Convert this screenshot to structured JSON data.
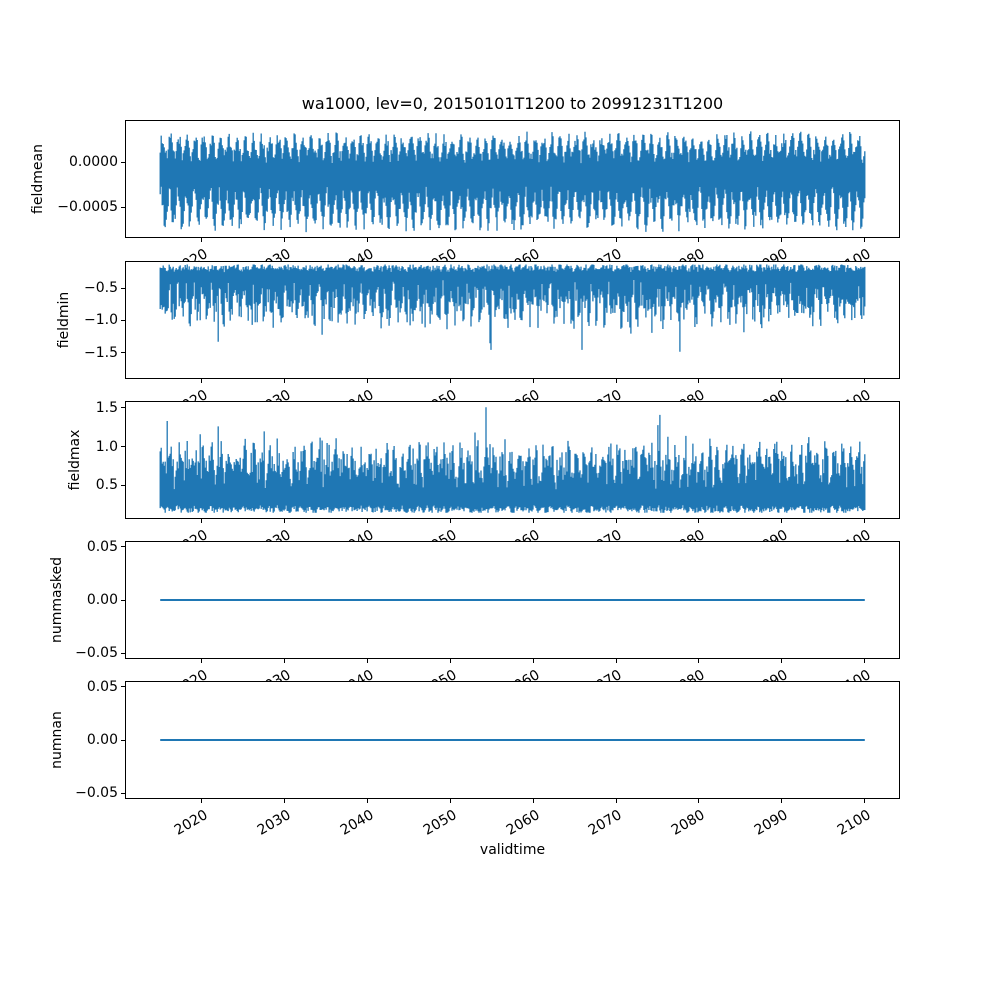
{
  "chart_data": {
    "type": "line",
    "title": "wa1000, lev=0, 20150101T1200 to 20991231T1200",
    "xlabel": "validtime",
    "line_color": "#1f77b4",
    "background_color": "#ffffff",
    "grid": false,
    "legend": null,
    "x": {
      "lim": [
        2010.75,
        2104.25
      ],
      "ticks": [
        2020,
        2030,
        2040,
        2050,
        2060,
        2070,
        2080,
        2090,
        2100
      ],
      "tick_labels": [
        "2020",
        "2030",
        "2040",
        "2050",
        "2060",
        "2070",
        "2080",
        "2090",
        "2100"
      ],
      "data_start_year": 2015,
      "data_end_year": 2100
    },
    "subplots": [
      {
        "ylabel": "fieldmean",
        "ylim": [
          -0.000844,
          0.000467
        ],
        "yticks": [
          {
            "v": 0.0,
            "label": "0.0000"
          },
          {
            "v": -0.0005,
            "label": "−0.0005"
          }
        ],
        "series": {
          "kind": "noise_band",
          "summary": {
            "approx_min": -0.00079,
            "approx_max": 0.00038,
            "mean": -0.0002
          },
          "top": {
            "base": 0.00017,
            "seasonal": 0.00011,
            "noise": 7e-05
          },
          "bottom": {
            "base": -0.00053,
            "seasonal": 0.00017,
            "noise": 9e-05
          },
          "spikes": null,
          "clip": [
            -0.0008,
            0.00038
          ]
        }
      },
      {
        "ylabel": "fieldmin",
        "ylim": [
          -1.91,
          -0.08
        ],
        "yticks": [
          {
            "v": -0.5,
            "label": "−0.5"
          },
          {
            "v": -1.0,
            "label": "−1.0"
          },
          {
            "v": -1.5,
            "label": "−1.5"
          }
        ],
        "series": {
          "kind": "noise_band",
          "summary": {
            "approx_min": -1.85,
            "approx_max": -0.12,
            "typical_band": [
              -1.1,
              -0.15
            ]
          },
          "top": {
            "base": -0.17,
            "seasonal": 0.02,
            "noise": 0.05
          },
          "bottom": {
            "base": -0.75,
            "seasonal": 0.18,
            "noise": 0.22
          },
          "spikes": {
            "prob": 0.025,
            "min": 0.25,
            "max": 1.0,
            "dir": "down"
          },
          "clip": [
            -1.86,
            -0.12
          ]
        }
      },
      {
        "ylabel": "fieldmax",
        "ylim": [
          0.06,
          1.59
        ],
        "yticks": [
          {
            "v": 1.5,
            "label": "1.5"
          },
          {
            "v": 1.0,
            "label": "1.0"
          },
          {
            "v": 0.5,
            "label": "0.5"
          }
        ],
        "series": {
          "kind": "noise_band",
          "summary": {
            "approx_min": 0.13,
            "approx_max": 1.52,
            "typical_band": [
              0.15,
              1.05
            ]
          },
          "top": {
            "base": 0.78,
            "seasonal": 0.15,
            "noise": 0.2
          },
          "bottom": {
            "base": 0.17,
            "seasonal": 0.02,
            "noise": 0.04
          },
          "spikes": {
            "prob": 0.02,
            "min": 0.2,
            "max": 0.75,
            "dir": "up"
          },
          "clip": [
            0.13,
            1.52
          ]
        }
      },
      {
        "ylabel": "nummasked",
        "ylim": [
          -0.0555,
          0.0555
        ],
        "yticks": [
          {
            "v": 0.05,
            "label": "0.05"
          },
          {
            "v": 0.0,
            "label": "0.00"
          },
          {
            "v": -0.05,
            "label": "−0.05"
          }
        ],
        "series": {
          "kind": "flat",
          "value": 0.0
        }
      },
      {
        "ylabel": "numnan",
        "ylim": [
          -0.0555,
          0.0555
        ],
        "yticks": [
          {
            "v": 0.05,
            "label": "0.05"
          },
          {
            "v": 0.0,
            "label": "0.00"
          },
          {
            "v": -0.05,
            "label": "−0.05"
          }
        ],
        "series": {
          "kind": "flat",
          "value": 0.0
        }
      }
    ]
  }
}
